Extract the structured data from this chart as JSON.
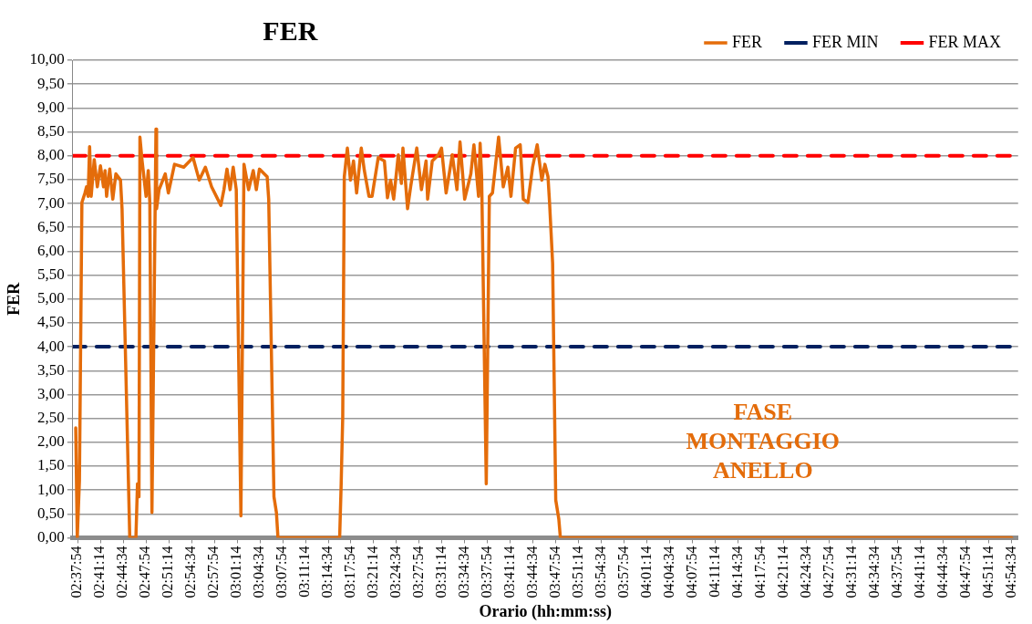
{
  "chart_data": {
    "type": "line",
    "title": "FER",
    "xlabel": "Orario (hh:mm:ss)",
    "ylabel": "FER",
    "xlim": [
      2.62,
      4.925
    ],
    "ylim": [
      0,
      10
    ],
    "xticks": [
      {
        "value": 2.631667,
        "label": "02:37:54"
      },
      {
        "value": 2.687222,
        "label": "02:41:14"
      },
      {
        "value": 2.742778,
        "label": "02:44:34"
      },
      {
        "value": 2.798333,
        "label": "02:47:54"
      },
      {
        "value": 2.853889,
        "label": "02:51:14"
      },
      {
        "value": 2.909444,
        "label": "02:54:34"
      },
      {
        "value": 2.965,
        "label": "02:57:54"
      },
      {
        "value": 3.020556,
        "label": "03:01:14"
      },
      {
        "value": 3.076111,
        "label": "03:04:34"
      },
      {
        "value": 3.131667,
        "label": "03:07:54"
      },
      {
        "value": 3.187222,
        "label": "03:11:14"
      },
      {
        "value": 3.242778,
        "label": "03:14:34"
      },
      {
        "value": 3.298333,
        "label": "03:17:54"
      },
      {
        "value": 3.353889,
        "label": "03:21:14"
      },
      {
        "value": 3.409444,
        "label": "03:24:34"
      },
      {
        "value": 3.465,
        "label": "03:27:54"
      },
      {
        "value": 3.520556,
        "label": "03:31:14"
      },
      {
        "value": 3.576111,
        "label": "03:34:34"
      },
      {
        "value": 3.631667,
        "label": "03:37:54"
      },
      {
        "value": 3.687222,
        "label": "03:41:14"
      },
      {
        "value": 3.742778,
        "label": "03:44:34"
      },
      {
        "value": 3.798333,
        "label": "03:47:54"
      },
      {
        "value": 3.853889,
        "label": "03:51:14"
      },
      {
        "value": 3.909444,
        "label": "03:54:34"
      },
      {
        "value": 3.965,
        "label": "03:57:54"
      },
      {
        "value": 4.020556,
        "label": "04:01:14"
      },
      {
        "value": 4.076111,
        "label": "04:04:34"
      },
      {
        "value": 4.131667,
        "label": "04:07:54"
      },
      {
        "value": 4.187222,
        "label": "04:11:14"
      },
      {
        "value": 4.242778,
        "label": "04:14:34"
      },
      {
        "value": 4.298333,
        "label": "04:17:54"
      },
      {
        "value": 4.353889,
        "label": "04:21:14"
      },
      {
        "value": 4.409444,
        "label": "04:24:34"
      },
      {
        "value": 4.465,
        "label": "04:27:54"
      },
      {
        "value": 4.520556,
        "label": "04:31:14"
      },
      {
        "value": 4.576111,
        "label": "04:34:34"
      },
      {
        "value": 4.631667,
        "label": "04:37:54"
      },
      {
        "value": 4.687222,
        "label": "04:41:14"
      },
      {
        "value": 4.742778,
        "label": "04:44:34"
      },
      {
        "value": 4.798333,
        "label": "04:47:54"
      },
      {
        "value": 4.853889,
        "label": "04:51:14"
      },
      {
        "value": 4.909444,
        "label": "04:54:34"
      }
    ],
    "yticks": [
      {
        "value": 0,
        "label": "0,00"
      },
      {
        "value": 0.5,
        "label": "0,50"
      },
      {
        "value": 1,
        "label": "1,00"
      },
      {
        "value": 1.5,
        "label": "1,50"
      },
      {
        "value": 2,
        "label": "2,00"
      },
      {
        "value": 2.5,
        "label": "2,50"
      },
      {
        "value": 3,
        "label": "3,00"
      },
      {
        "value": 3.5,
        "label": "3,50"
      },
      {
        "value": 4,
        "label": "4,00"
      },
      {
        "value": 4.5,
        "label": "4,50"
      },
      {
        "value": 5,
        "label": "5,00"
      },
      {
        "value": 5.5,
        "label": "5,50"
      },
      {
        "value": 6,
        "label": "6,00"
      },
      {
        "value": 6.5,
        "label": "6,50"
      },
      {
        "value": 7,
        "label": "7,00"
      },
      {
        "value": 7.5,
        "label": "7,50"
      },
      {
        "value": 8,
        "label": "8,00"
      },
      {
        "value": 8.5,
        "label": "8,50"
      },
      {
        "value": 9,
        "label": "9,00"
      },
      {
        "value": 9.5,
        "label": "9,50"
      },
      {
        "value": 10,
        "label": "10,00"
      }
    ],
    "grid": "y",
    "legend": "top right",
    "marker": "none",
    "annotations": [
      "FASE MONTAGGIO ANELLO"
    ],
    "series": [
      {
        "name": "FER",
        "color": "#e46c0a",
        "line_style": "solid",
        "x": [
          2.6272,
          2.6309,
          2.6362,
          2.6422,
          2.6497,
          2.6535,
          2.6573,
          2.661,
          2.6648,
          2.6723,
          2.6798,
          2.6874,
          2.6949,
          2.6987,
          2.7024,
          2.71,
          2.7175,
          2.725,
          2.7363,
          2.7401,
          2.7589,
          2.7739,
          2.7777,
          2.7814,
          2.7837,
          2.789,
          2.7987,
          2.804,
          2.8078,
          2.813,
          2.8228,
          2.8243,
          2.8304,
          2.8454,
          2.853,
          2.868,
          2.8906,
          2.9132,
          2.9282,
          2.9433,
          2.9584,
          2.981,
          2.9885,
          2.996,
          3.0036,
          3.0111,
          3.0186,
          3.0299,
          3.0374,
          3.0487,
          3.06,
          3.0675,
          3.0751,
          3.0939,
          3.0977,
          3.1105,
          3.1165,
          3.1203,
          3.2707,
          3.2744,
          3.2782,
          3.282,
          3.2895,
          3.297,
          3.3045,
          3.3121,
          3.3234,
          3.3309,
          3.3422,
          3.3497,
          3.3648,
          3.3798,
          3.3873,
          3.3949,
          3.4024,
          3.4137,
          3.4212,
          3.425,
          3.4363,
          3.4438,
          3.4588,
          3.4701,
          3.4814,
          3.4852,
          3.4965,
          3.5115,
          3.5191,
          3.5303,
          3.5454,
          3.5567,
          3.5642,
          3.5755,
          3.5906,
          3.5981,
          3.6094,
          3.6132,
          3.6169,
          3.6282,
          3.6357,
          3.6433,
          3.6583,
          3.6696,
          3.6809,
          3.6884,
          3.6997,
          3.711,
          3.7185,
          3.7298,
          3.7411,
          3.7524,
          3.7637,
          3.7712,
          3.7787,
          3.7825,
          3.79,
          3.7976,
          3.8051,
          3.8089,
          4.909444
        ],
        "values": [
          2.3,
          0,
          1.2,
          7.02,
          7.22,
          7.35,
          7.15,
          8.19,
          7.15,
          7.92,
          7.35,
          7.79,
          7.35,
          7.69,
          7.15,
          7.72,
          7.09,
          7.62,
          7.49,
          6.89,
          0,
          0,
          1.13,
          0.86,
          8.39,
          7.89,
          7.15,
          7.69,
          7.02,
          0.53,
          8.56,
          6.89,
          7.29,
          7.62,
          7.22,
          7.82,
          7.76,
          7.96,
          7.49,
          7.76,
          7.35,
          6.96,
          7.29,
          7.72,
          7.29,
          7.76,
          7.29,
          0.46,
          7.82,
          7.29,
          7.69,
          7.29,
          7.72,
          7.56,
          7.09,
          0.86,
          0.53,
          0,
          0,
          1.13,
          2.54,
          7.56,
          8.16,
          7.49,
          7.89,
          7.22,
          8.16,
          7.69,
          7.15,
          7.15,
          7.96,
          7.89,
          7.12,
          7.49,
          7.09,
          8.02,
          7.42,
          8.16,
          6.89,
          7.35,
          8.16,
          7.29,
          7.89,
          7.09,
          7.89,
          8.02,
          8.16,
          7.22,
          8.02,
          7.29,
          8.29,
          7.09,
          7.62,
          8.23,
          7.15,
          8.26,
          7.56,
          1.13,
          7.15,
          7.22,
          8.39,
          7.35,
          7.76,
          7.15,
          8.16,
          8.23,
          7.09,
          7.02,
          7.76,
          8.23,
          7.49,
          7.82,
          7.56,
          7.02,
          5.75,
          0.79,
          0.39,
          0,
          0
        ]
      },
      {
        "name": "FER MIN",
        "color": "#002060",
        "line_style": "dashed",
        "x": [
          2.62,
          4.925
        ],
        "values": [
          4,
          4
        ]
      },
      {
        "name": "FER MAX",
        "color": "#ff0000",
        "line_style": "dashed",
        "x": [
          2.62,
          4.925
        ],
        "values": [
          8,
          8
        ]
      }
    ]
  }
}
